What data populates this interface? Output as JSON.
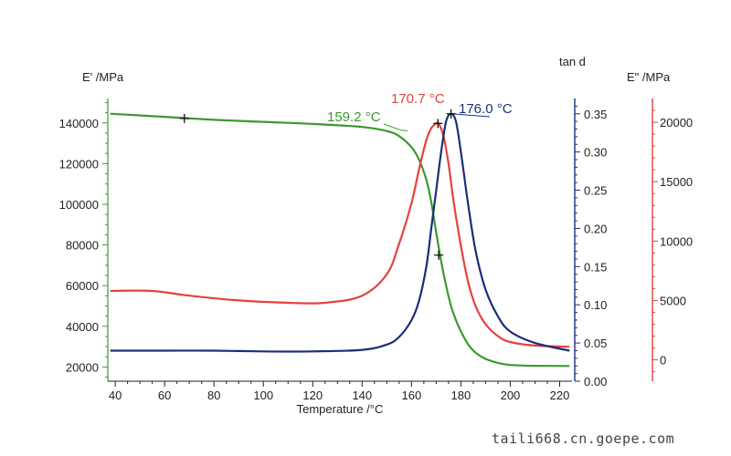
{
  "watermark": "taili668.cn.goepe.com",
  "colors": {
    "green": "#3c9a2e",
    "red": "#e2433f",
    "navy": "#1b2e7a",
    "axis": "#222222"
  },
  "chart_data": {
    "type": "line",
    "xlabel": "Temperature /°C",
    "xlim": [
      37,
      225
    ],
    "x_ticks": [
      40,
      60,
      80,
      100,
      120,
      140,
      160,
      180,
      200,
      220
    ],
    "axes": {
      "left": {
        "label": "E' /MPa",
        "lim": [
          13000,
          152000
        ],
        "ticks": [
          20000,
          40000,
          60000,
          80000,
          100000,
          120000,
          140000
        ]
      },
      "right1": {
        "label": "tan d",
        "lim": [
          0,
          0.37
        ],
        "ticks": [
          "0.00",
          "0.05",
          "0.10",
          "0.15",
          "0.20",
          "0.25",
          "0.30",
          "0.35"
        ]
      },
      "right2": {
        "label": "E\" /MPa",
        "lim": [
          -1800,
          22000
        ],
        "ticks": [
          0,
          5000,
          10000,
          15000,
          20000
        ]
      }
    },
    "series": [
      {
        "name": "E'",
        "axis": "left",
        "color": "#3c9a2e",
        "x": [
          38,
          60,
          80,
          100,
          120,
          140,
          150,
          155,
          160,
          163,
          166,
          168,
          170,
          172,
          174,
          176,
          178,
          180,
          183,
          186,
          190,
          195,
          200,
          210,
          224
        ],
        "y": [
          144500,
          143000,
          141500,
          140500,
          139500,
          138000,
          136000,
          133500,
          128000,
          122000,
          112000,
          101000,
          86000,
          72000,
          60000,
          50000,
          43000,
          37500,
          31000,
          27000,
          24000,
          22000,
          21000,
          20600,
          20500
        ]
      },
      {
        "name": "E\"",
        "axis": "right2",
        "color": "#e2433f",
        "x": [
          38,
          55,
          70,
          90,
          110,
          125,
          140,
          150,
          155,
          160,
          163,
          166,
          168,
          170,
          171,
          173,
          175,
          177,
          180,
          183,
          186,
          190,
          195,
          200,
          210,
          224
        ],
        "y": [
          5800,
          5800,
          5400,
          5000,
          4800,
          4800,
          5400,
          7200,
          9800,
          13200,
          16000,
          18500,
          19500,
          19900,
          19900,
          18800,
          16500,
          13400,
          9600,
          6500,
          4500,
          3000,
          2000,
          1500,
          1200,
          1100
        ]
      },
      {
        "name": "tan d",
        "axis": "right1",
        "color": "#1b2e7a",
        "x": [
          38,
          60,
          80,
          100,
          120,
          140,
          150,
          155,
          160,
          163,
          166,
          168,
          170,
          172,
          174,
          176,
          178,
          180,
          183,
          186,
          190,
          195,
          200,
          210,
          224
        ],
        "y": [
          0.04,
          0.04,
          0.04,
          0.039,
          0.039,
          0.041,
          0.048,
          0.058,
          0.08,
          0.105,
          0.15,
          0.2,
          0.25,
          0.3,
          0.34,
          0.35,
          0.34,
          0.3,
          0.23,
          0.17,
          0.12,
          0.085,
          0.065,
          0.05,
          0.04
        ]
      }
    ],
    "annotations": [
      {
        "text": "159.2 °C",
        "color": "#3c9a2e",
        "x": 159.2,
        "series": "E'"
      },
      {
        "text": "170.7 °C",
        "color": "#e2433f",
        "x": 170.7,
        "series": "E\""
      },
      {
        "text": "176.0 °C",
        "color": "#1b2e7a",
        "x": 176.0,
        "series": "tan d"
      }
    ],
    "markers": [
      {
        "series": "E'",
        "x": 68,
        "y": 142200
      },
      {
        "series": "E'",
        "x": 171,
        "y": 75000
      }
    ]
  }
}
